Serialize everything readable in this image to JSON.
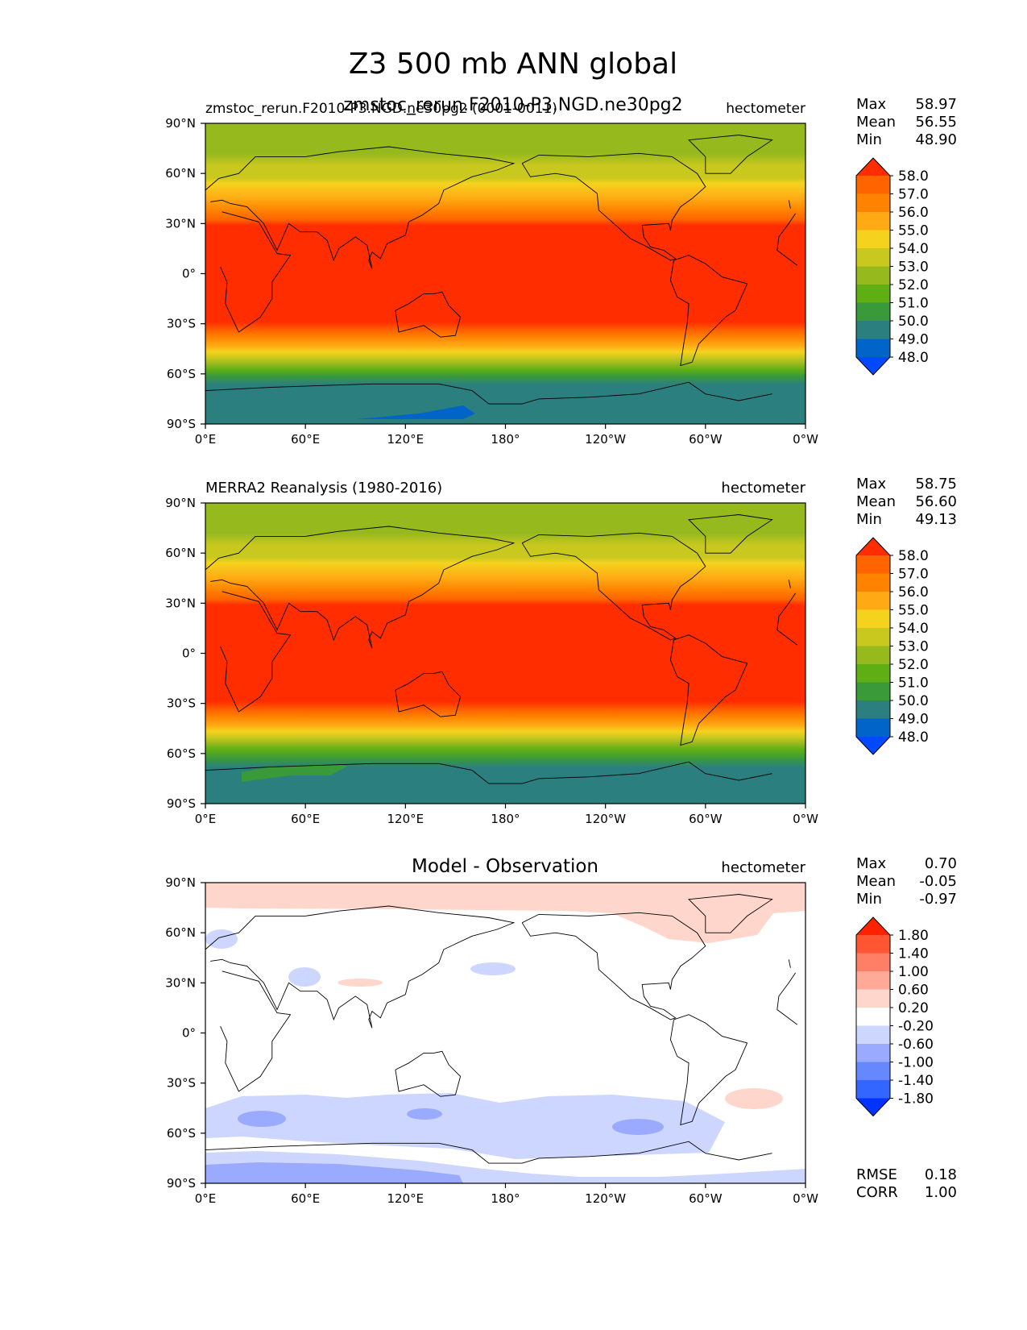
{
  "title": "Z3 500 mb ANN global",
  "subtitle": "zmstoc_rerun.F2010-P3.NGD.ne30pg2",
  "x_ticks": [
    "0°E",
    "60°E",
    "120°E",
    "180°",
    "120°W",
    "60°W",
    "0°W"
  ],
  "y_ticks": [
    "90°N",
    "60°N",
    "30°N",
    "0°",
    "30°S",
    "60°S",
    "90°S"
  ],
  "panels": [
    {
      "left_title": "zmstoc_rerun.F2010-P3.NGD.ne30pg2 (0001-0011)",
      "center_title": "",
      "units": "hectometer",
      "stats_labels": [
        "Max",
        "Mean",
        "Min"
      ],
      "stats_values": [
        "58.97",
        "56.55",
        "48.90"
      ],
      "colorbar_ticks": [
        "58.0",
        "57.0",
        "56.0",
        "55.0",
        "54.0",
        "53.0",
        "52.0",
        "51.0",
        "50.0",
        "49.0",
        "48.0"
      ]
    },
    {
      "left_title": "MERRA2 Reanalysis (1980-2016)",
      "center_title": "",
      "units": "hectometer",
      "stats_labels": [
        "Max",
        "Mean",
        "Min"
      ],
      "stats_values": [
        "58.75",
        "56.60",
        "49.13"
      ],
      "colorbar_ticks": [
        "58.0",
        "57.0",
        "56.0",
        "55.0",
        "54.0",
        "53.0",
        "52.0",
        "51.0",
        "50.0",
        "49.0",
        "48.0"
      ]
    },
    {
      "left_title": "",
      "center_title": "Model - Observation",
      "units": "hectometer",
      "stats_labels": [
        "Max",
        "Mean",
        "Min"
      ],
      "stats_values": [
        "0.70",
        "-0.05",
        "-0.97"
      ],
      "colorbar_ticks": [
        "1.80",
        "1.40",
        "1.00",
        "0.60",
        "0.20",
        "-0.20",
        "-0.60",
        "-1.00",
        "-1.40",
        "-1.80"
      ],
      "extra_labels": [
        "RMSE",
        "CORR"
      ],
      "extra_values": [
        "0.18",
        "1.00"
      ]
    }
  ],
  "chart_data": [
    {
      "type": "heatmap",
      "title": "zmstoc_rerun.F2010-P3.NGD.ne30pg2 (0001-0011)",
      "variable": "Z3 500 mb ANN global",
      "units": "hectometer",
      "xlim": [
        0,
        360
      ],
      "ylim": [
        -90,
        90
      ],
      "contour_levels": [
        48,
        49,
        50,
        51,
        52,
        53,
        54,
        55,
        56,
        57,
        58
      ],
      "colors": [
        "#0049ff",
        "#0064c8",
        "#2b7f7f",
        "#3a9a3a",
        "#5faf14",
        "#96b91e",
        "#c8c81e",
        "#f5d21e",
        "#ffaa14",
        "#ff8200",
        "#ff6400",
        "#ff2d00"
      ],
      "zonal_mean_profile": {
        "lat": [
          90,
          75,
          60,
          50,
          40,
          30,
          -30,
          -40,
          -50,
          -60,
          -70,
          -80,
          -90
        ],
        "value": [
          52.5,
          53.1,
          54.0,
          55.0,
          56.5,
          58.3,
          58.3,
          56.5,
          54.5,
          52.0,
          49.8,
          49.2,
          49.0
        ]
      },
      "max": 58.97,
      "mean": 56.55,
      "min": 48.9
    },
    {
      "type": "heatmap",
      "title": "MERRA2 Reanalysis (1980-2016)",
      "units": "hectometer",
      "xlim": [
        0,
        360
      ],
      "ylim": [
        -90,
        90
      ],
      "contour_levels": [
        48,
        49,
        50,
        51,
        52,
        53,
        54,
        55,
        56,
        57,
        58
      ],
      "zonal_mean_profile": {
        "lat": [
          90,
          75,
          60,
          50,
          40,
          30,
          -30,
          -40,
          -50,
          -60,
          -70,
          -80,
          -90
        ],
        "value": [
          52.5,
          53.1,
          54.0,
          55.0,
          56.5,
          58.3,
          58.3,
          56.5,
          54.5,
          52.0,
          50.2,
          49.5,
          49.3
        ]
      },
      "max": 58.75,
      "mean": 56.6,
      "min": 49.13
    },
    {
      "type": "heatmap",
      "title": "Model - Observation",
      "units": "hectometer",
      "xlim": [
        0,
        360
      ],
      "ylim": [
        -90,
        90
      ],
      "contour_levels": [
        -1.8,
        -1.4,
        -1.0,
        -0.6,
        -0.2,
        0.2,
        0.6,
        1.0,
        1.4,
        1.8
      ],
      "colors": [
        "#0033ff",
        "#3366ff",
        "#6688ff",
        "#99aaff",
        "#ccd6ff",
        "#ffffff",
        "#ffd6cc",
        "#ffaa99",
        "#ff7f66",
        "#ff5533",
        "#ff2200"
      ],
      "max": 0.7,
      "mean": -0.05,
      "min": -0.97,
      "rmse": 0.18,
      "corr": 1.0
    }
  ]
}
